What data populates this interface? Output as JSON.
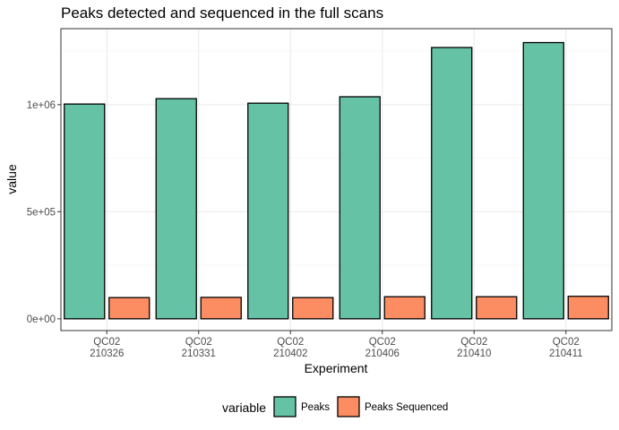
{
  "chart_data": {
    "type": "bar",
    "title": "Peaks detected and sequenced in the full scans",
    "xlabel": "Experiment",
    "ylabel": "value",
    "categories": [
      [
        "QC02",
        "210326"
      ],
      [
        "QC02",
        "210331"
      ],
      [
        "QC02",
        "210402"
      ],
      [
        "QC02",
        "210406"
      ],
      [
        "QC02",
        "210410"
      ],
      [
        "QC02",
        "210411"
      ]
    ],
    "series": [
      {
        "name": "Peaks",
        "color": "#66c2a5",
        "values": [
          1003000,
          1028000,
          1007000,
          1037000,
          1267000,
          1290000
        ]
      },
      {
        "name": "Peaks Sequenced",
        "color": "#fc8d62",
        "values": [
          99000,
          100000,
          99000,
          103000,
          103000,
          105000
        ]
      }
    ],
    "ylim": [
      -55000,
      1355000
    ],
    "yticks": [
      0,
      500000,
      1000000
    ],
    "ytick_labels": [
      "0e+00",
      "5e+05",
      "1e+06"
    ],
    "grid": true,
    "legend": {
      "title": "variable",
      "position": "bottom"
    }
  }
}
